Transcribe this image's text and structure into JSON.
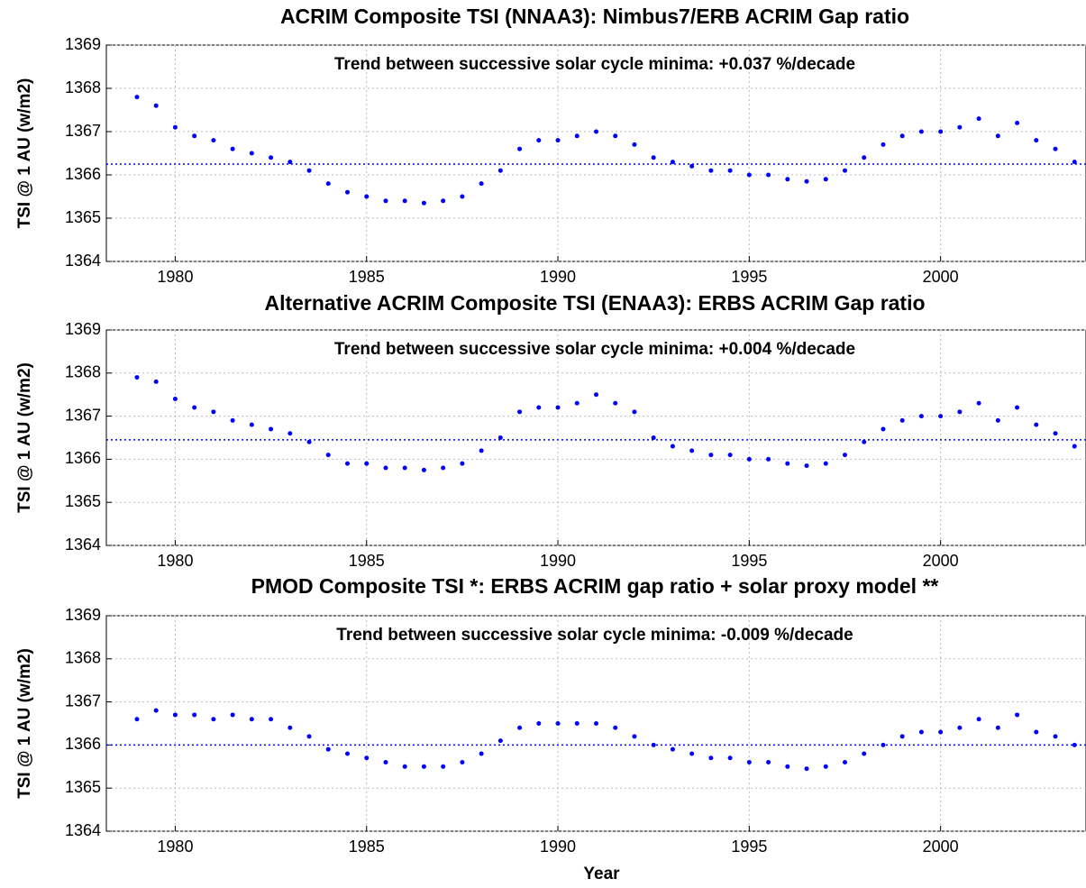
{
  "chart_data": [
    {
      "type": "scatter",
      "title": "ACRIM Composite TSI (NNAA3): Nimbus7/ERB ACRIM Gap ratio",
      "annotation": "Trend between successive solar cycle minima: +0.037 %/decade",
      "ylabel": "TSI @ 1 AU (w/m2)",
      "color": "#0000ff",
      "grid": true,
      "xlim": [
        1978.2,
        2003.8
      ],
      "ylim": [
        1364,
        1369
      ],
      "xticks": [
        1980,
        1985,
        1990,
        1995,
        2000
      ],
      "yticks": [
        1364,
        1365,
        1366,
        1367,
        1368,
        1369
      ],
      "reference_line": 1366.25,
      "x": [
        1979,
        1979.5,
        1980,
        1980.5,
        1981,
        1981.5,
        1982,
        1982.5,
        1983,
        1983.5,
        1984,
        1984.5,
        1985,
        1985.5,
        1986,
        1986.5,
        1987,
        1987.5,
        1988,
        1988.5,
        1989,
        1989.5,
        1990,
        1990.5,
        1991,
        1991.5,
        1992,
        1992.5,
        1993,
        1993.5,
        1994,
        1994.5,
        1995,
        1995.5,
        1996,
        1996.5,
        1997,
        1997.5,
        1998,
        1998.5,
        1999,
        1999.5,
        2000,
        2000.5,
        2001,
        2001.5,
        2002,
        2002.5,
        2003,
        2003.5
      ],
      "values": [
        1367.8,
        1367.6,
        1367.1,
        1366.9,
        1366.8,
        1366.6,
        1366.5,
        1366.4,
        1366.3,
        1366.1,
        1365.8,
        1365.6,
        1365.5,
        1365.4,
        1365.4,
        1365.35,
        1365.4,
        1365.5,
        1365.8,
        1366.1,
        1366.6,
        1366.8,
        1366.8,
        1366.9,
        1367.0,
        1366.9,
        1366.7,
        1366.4,
        1366.3,
        1366.2,
        1366.1,
        1366.1,
        1366.0,
        1366.0,
        1365.9,
        1365.85,
        1365.9,
        1366.1,
        1366.4,
        1366.7,
        1366.9,
        1367.0,
        1367.0,
        1367.1,
        1367.3,
        1366.9,
        1367.2,
        1366.8,
        1366.6,
        1366.3
      ]
    },
    {
      "type": "scatter",
      "title": "Alternative ACRIM Composite TSI (ENAA3): ERBS ACRIM Gap ratio",
      "annotation": "Trend between successive solar cycle minima: +0.004 %/decade",
      "ylabel": "TSI @ 1 AU (w/m2)",
      "color": "#0000ff",
      "grid": true,
      "xlim": [
        1978.2,
        2003.8
      ],
      "ylim": [
        1364,
        1369
      ],
      "xticks": [
        1980,
        1985,
        1990,
        1995,
        2000
      ],
      "yticks": [
        1364,
        1365,
        1366,
        1367,
        1368,
        1369
      ],
      "reference_line": 1366.45,
      "x": [
        1979,
        1979.5,
        1980,
        1980.5,
        1981,
        1981.5,
        1982,
        1982.5,
        1983,
        1983.5,
        1984,
        1984.5,
        1985,
        1985.5,
        1986,
        1986.5,
        1987,
        1987.5,
        1988,
        1988.5,
        1989,
        1989.5,
        1990,
        1990.5,
        1991,
        1991.5,
        1992,
        1992.5,
        1993,
        1993.5,
        1994,
        1994.5,
        1995,
        1995.5,
        1996,
        1996.5,
        1997,
        1997.5,
        1998,
        1998.5,
        1999,
        1999.5,
        2000,
        2000.5,
        2001,
        2001.5,
        2002,
        2002.5,
        2003,
        2003.5
      ],
      "values": [
        1367.9,
        1367.8,
        1367.4,
        1367.2,
        1367.1,
        1366.9,
        1366.8,
        1366.7,
        1366.6,
        1366.4,
        1366.1,
        1365.9,
        1365.9,
        1365.8,
        1365.8,
        1365.75,
        1365.8,
        1365.9,
        1366.2,
        1366.5,
        1367.1,
        1367.2,
        1367.2,
        1367.3,
        1367.5,
        1367.3,
        1367.1,
        1366.5,
        1366.3,
        1366.2,
        1366.1,
        1366.1,
        1366.0,
        1366.0,
        1365.9,
        1365.85,
        1365.9,
        1366.1,
        1366.4,
        1366.7,
        1366.9,
        1367.0,
        1367.0,
        1367.1,
        1367.3,
        1366.9,
        1367.2,
        1366.8,
        1366.6,
        1366.3
      ]
    },
    {
      "type": "scatter",
      "title": "PMOD Composite TSI *: ERBS ACRIM gap ratio + solar proxy model **",
      "annotation": "Trend between successive solar cycle minima: -0.009 %/decade",
      "ylabel": "TSI @ 1 AU (w/m2)",
      "xlabel": "Year",
      "color": "#0000ff",
      "grid": true,
      "xlim": [
        1978.2,
        2003.8
      ],
      "ylim": [
        1364,
        1369
      ],
      "xticks": [
        1980,
        1985,
        1990,
        1995,
        2000
      ],
      "yticks": [
        1364,
        1365,
        1366,
        1367,
        1368,
        1369
      ],
      "reference_line": 1366.0,
      "x": [
        1979,
        1979.5,
        1980,
        1980.5,
        1981,
        1981.5,
        1982,
        1982.5,
        1983,
        1983.5,
        1984,
        1984.5,
        1985,
        1985.5,
        1986,
        1986.5,
        1987,
        1987.5,
        1988,
        1988.5,
        1989,
        1989.5,
        1990,
        1990.5,
        1991,
        1991.5,
        1992,
        1992.5,
        1993,
        1993.5,
        1994,
        1994.5,
        1995,
        1995.5,
        1996,
        1996.5,
        1997,
        1997.5,
        1998,
        1998.5,
        1999,
        1999.5,
        2000,
        2000.5,
        2001,
        2001.5,
        2002,
        2002.5,
        2003,
        2003.5
      ],
      "values": [
        1366.6,
        1366.8,
        1366.7,
        1366.7,
        1366.6,
        1366.7,
        1366.6,
        1366.6,
        1366.4,
        1366.2,
        1365.9,
        1365.8,
        1365.7,
        1365.6,
        1365.5,
        1365.5,
        1365.5,
        1365.6,
        1365.8,
        1366.1,
        1366.4,
        1366.5,
        1366.5,
        1366.5,
        1366.5,
        1366.4,
        1366.2,
        1366.0,
        1365.9,
        1365.8,
        1365.7,
        1365.7,
        1365.6,
        1365.6,
        1365.5,
        1365.45,
        1365.5,
        1365.6,
        1365.8,
        1366.0,
        1366.2,
        1366.3,
        1366.3,
        1366.4,
        1366.6,
        1366.4,
        1366.7,
        1366.3,
        1366.2,
        1366.0
      ]
    }
  ]
}
